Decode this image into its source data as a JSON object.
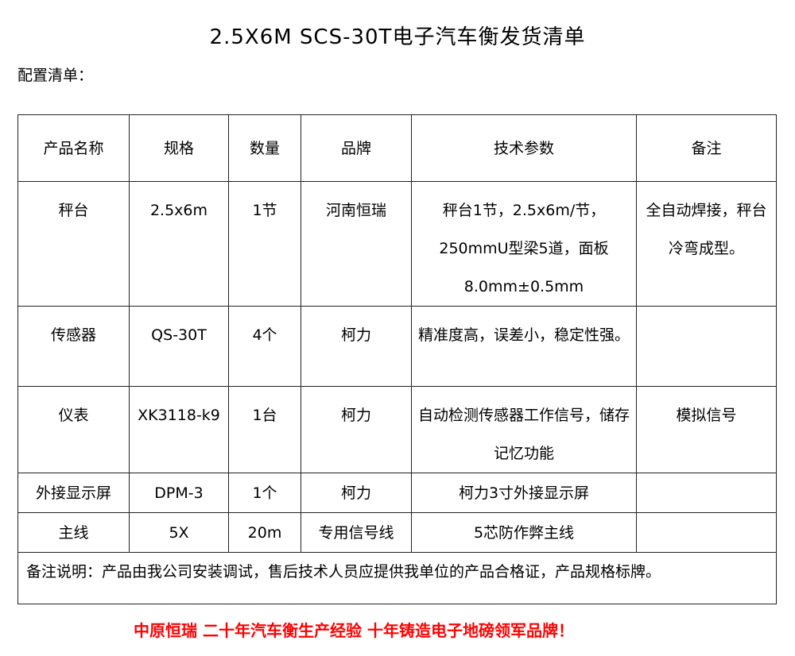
{
  "title": "2.5X6M SCS-30T电子汽车衡发货清单",
  "subtitle": "配置清单：",
  "headers": [
    "产品名称",
    "规格",
    "数量",
    "品牌",
    "技术参数",
    "备注"
  ],
  "rows": [
    [
      "秤台",
      "2.5x6m",
      "1节",
      "河南恒瑞",
      "秤台1节，2.5x6m/节，250mmU型梁5道，面板8.0mm±0.5mm",
      "全自动焊接，秤台冷弯成型。"
    ],
    [
      "传感器",
      "QS-30T",
      "4个",
      "柯力",
      "精准度高，误差小，稳定性强。",
      ""
    ],
    [
      "仪表",
      "XK3118-k9",
      "1台",
      "柯力",
      "自动检测传感器工作信号，储存记忆功能",
      "模拟信号"
    ],
    [
      "外接显示屏",
      "DPM-3",
      "1个",
      "柯力",
      "柯力3寸外接显示屏",
      ""
    ],
    [
      "主线",
      "5X",
      "20m",
      "专用信号线",
      "5芯防作弊主线",
      ""
    ]
  ],
  "note": "备注说明：产品由我公司安装调试，售后技术人员应提供我单位的产品合格证，产品规格标牌。",
  "slogan": "中原恒瑞 二十年汽车衡生产经验 十年铸造电子地磅领军品牌！",
  "colors": {
    "slogan": "#ff0000"
  }
}
